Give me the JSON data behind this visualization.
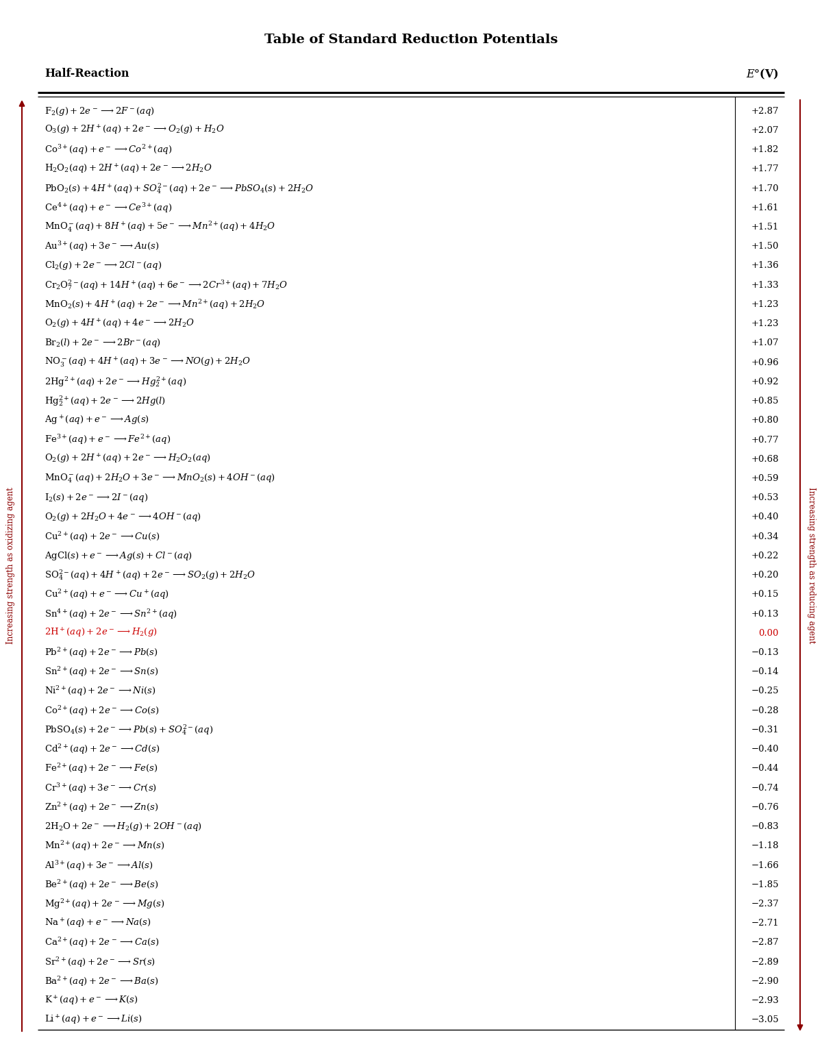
{
  "title": "Table of Standard Reduction Potentials",
  "col1_header": "Half-Reaction",
  "col2_header": "E°(V)",
  "rows": [
    [
      "$\\mathrm{F_2}(g) + 2e^- \\longrightarrow 2F^-(aq)$",
      "+2.87",
      false
    ],
    [
      "$\\mathrm{O_3}(g) + 2H^+(aq) + 2e^- \\longrightarrow O_2(g) + H_2O$",
      "+2.07",
      false
    ],
    [
      "$\\mathrm{Co^{3+}}(aq) + e^- \\longrightarrow Co^{2+}(aq)$",
      "+1.82",
      false
    ],
    [
      "$\\mathrm{H_2O_2}(aq) + 2H^+(aq) + 2e^- \\longrightarrow 2H_2O$",
      "+1.77",
      false
    ],
    [
      "$\\mathrm{PbO_2}(s) + 4H^+(aq) + SO_4^{2-}(aq) + 2e^- \\longrightarrow PbSO_4(s) + 2H_2O$",
      "+1.70",
      false
    ],
    [
      "$\\mathrm{Ce^{4+}}(aq) + e^- \\longrightarrow Ce^{3+}(aq)$",
      "+1.61",
      false
    ],
    [
      "$\\mathrm{MnO_4^-}(aq) + 8H^+(aq) + 5e^- \\longrightarrow Mn^{2+}(aq) + 4H_2O$",
      "+1.51",
      false
    ],
    [
      "$\\mathrm{Au^{3+}}(aq) + 3e^- \\longrightarrow Au(s)$",
      "+1.50",
      false
    ],
    [
      "$\\mathrm{Cl_2}(g) + 2e^- \\longrightarrow 2Cl^-(aq)$",
      "+1.36",
      false
    ],
    [
      "$\\mathrm{Cr_2O_7^{2-}}(aq) + 14H^+(aq) + 6e^- \\longrightarrow 2Cr^{3+}(aq) + 7H_2O$",
      "+1.33",
      false
    ],
    [
      "$\\mathrm{MnO_2}(s) + 4H^+(aq) + 2e^- \\longrightarrow Mn^{2+}(aq) + 2H_2O$",
      "+1.23",
      false
    ],
    [
      "$\\mathrm{O_2}(g) + 4H^+(aq) + 4e^- \\longrightarrow 2H_2O$",
      "+1.23",
      false
    ],
    [
      "$\\mathrm{Br_2}(l) + 2e^- \\longrightarrow 2Br^-(aq)$",
      "+1.07",
      false
    ],
    [
      "$\\mathrm{NO_3^-}(aq) + 4H^+(aq) + 3e^- \\longrightarrow NO(g) + 2H_2O$",
      "+0.96",
      false
    ],
    [
      "$2\\mathrm{Hg^{2+}}(aq) + 2e^- \\longrightarrow Hg_2^{2+}(aq)$",
      "+0.92",
      false
    ],
    [
      "$\\mathrm{Hg_2^{2+}}(aq) + 2e^- \\longrightarrow 2Hg(l)$",
      "+0.85",
      false
    ],
    [
      "$\\mathrm{Ag^+}(aq) + e^- \\longrightarrow Ag(s)$",
      "+0.80",
      false
    ],
    [
      "$\\mathrm{Fe^{3+}}(aq) + e^- \\longrightarrow Fe^{2+}(aq)$",
      "+0.77",
      false
    ],
    [
      "$\\mathrm{O_2}(g) + 2H^+(aq) + 2e^- \\longrightarrow H_2O_2(aq)$",
      "+0.68",
      false
    ],
    [
      "$\\mathrm{MnO_4^-}(aq) + 2H_2O + 3e^- \\longrightarrow MnO_2(s) + 4OH^-(aq)$",
      "+0.59",
      false
    ],
    [
      "$\\mathrm{I_2}(s) + 2e^- \\longrightarrow 2I^-(aq)$",
      "+0.53",
      false
    ],
    [
      "$\\mathrm{O_2}(g) + 2H_2O + 4e^- \\longrightarrow 4OH^-(aq)$",
      "+0.40",
      false
    ],
    [
      "$\\mathrm{Cu^{2+}}(aq) + 2e^- \\longrightarrow Cu(s)$",
      "+0.34",
      false
    ],
    [
      "$\\mathrm{AgCl}(s) + e^- \\longrightarrow Ag(s) + Cl^-(aq)$",
      "+0.22",
      false
    ],
    [
      "$\\mathrm{SO_4^{2-}}(aq) + 4H^+(aq) + 2e^- \\longrightarrow SO_2(g) + 2H_2O$",
      "+0.20",
      false
    ],
    [
      "$\\mathrm{Cu^{2+}}(aq) + e^- \\longrightarrow Cu^+(aq)$",
      "+0.15",
      false
    ],
    [
      "$\\mathrm{Sn^{4+}}(aq) + 2e^- \\longrightarrow Sn^{2+}(aq)$",
      "+0.13",
      false
    ],
    [
      "$2\\mathrm{H^+}(aq) + 2e^- \\longrightarrow H_2(g)$",
      "0.00",
      true
    ],
    [
      "$\\mathrm{Pb^{2+}}(aq) + 2e^- \\longrightarrow Pb(s)$",
      "−0.13",
      false
    ],
    [
      "$\\mathrm{Sn^{2+}}(aq) + 2e^- \\longrightarrow Sn(s)$",
      "−0.14",
      false
    ],
    [
      "$\\mathrm{Ni^{2+}}(aq) + 2e^- \\longrightarrow Ni(s)$",
      "−0.25",
      false
    ],
    [
      "$\\mathrm{Co^{2+}}(aq) + 2e^- \\longrightarrow Co(s)$",
      "−0.28",
      false
    ],
    [
      "$\\mathrm{PbSO_4}(s) + 2e^- \\longrightarrow Pb(s) + SO_4^{2-}(aq)$",
      "−0.31",
      false
    ],
    [
      "$\\mathrm{Cd^{2+}}(aq) + 2e^- \\longrightarrow Cd(s)$",
      "−0.40",
      false
    ],
    [
      "$\\mathrm{Fe^{2+}}(aq) + 2e^- \\longrightarrow Fe(s)$",
      "−0.44",
      false
    ],
    [
      "$\\mathrm{Cr^{3+}}(aq) + 3e^- \\longrightarrow Cr(s)$",
      "−0.74",
      false
    ],
    [
      "$\\mathrm{Zn^{2+}}(aq) + 2e^- \\longrightarrow Zn(s)$",
      "−0.76",
      false
    ],
    [
      "$2\\mathrm{H_2O} + 2e^- \\longrightarrow H_2(g) + 2OH^-(aq)$",
      "−0.83",
      false
    ],
    [
      "$\\mathrm{Mn^{2+}}(aq) + 2e^- \\longrightarrow Mn(s)$",
      "−1.18",
      false
    ],
    [
      "$\\mathrm{Al^{3+}}(aq) + 3e^- \\longrightarrow Al(s)$",
      "−1.66",
      false
    ],
    [
      "$\\mathrm{Be^{2+}}(aq) + 2e^- \\longrightarrow Be(s)$",
      "−1.85",
      false
    ],
    [
      "$\\mathrm{Mg^{2+}}(aq) + 2e^- \\longrightarrow Mg(s)$",
      "−2.37",
      false
    ],
    [
      "$\\mathrm{Na^+}(aq) + e^- \\longrightarrow Na(s)$",
      "−2.71",
      false
    ],
    [
      "$\\mathrm{Ca^{2+}}(aq) + 2e^- \\longrightarrow Ca(s)$",
      "−2.87",
      false
    ],
    [
      "$\\mathrm{Sr^{2+}}(aq) + 2e^- \\longrightarrow Sr(s)$",
      "−2.89",
      false
    ],
    [
      "$\\mathrm{Ba^{2+}}(aq) + 2e^- \\longrightarrow Ba(s)$",
      "−2.90",
      false
    ],
    [
      "$\\mathrm{K^+}(aq) + e^- \\longrightarrow K(s)$",
      "−2.93",
      false
    ],
    [
      "$\\mathrm{Li^+}(aq) + e^- \\longrightarrow Li(s)$",
      "−3.05",
      false
    ]
  ],
  "left_arrow_label": "Increasing strength as oxidizing agent",
  "right_arrow_label": "Increasing strength as reducing agent",
  "border_color": "#8B0000",
  "zero_row_color": "#CC0000",
  "background_color": "#FFFFFF",
  "text_color": "#000000",
  "header_color": "#000000",
  "fig_width": 12.0,
  "fig_height": 15.53,
  "dpi": 100
}
